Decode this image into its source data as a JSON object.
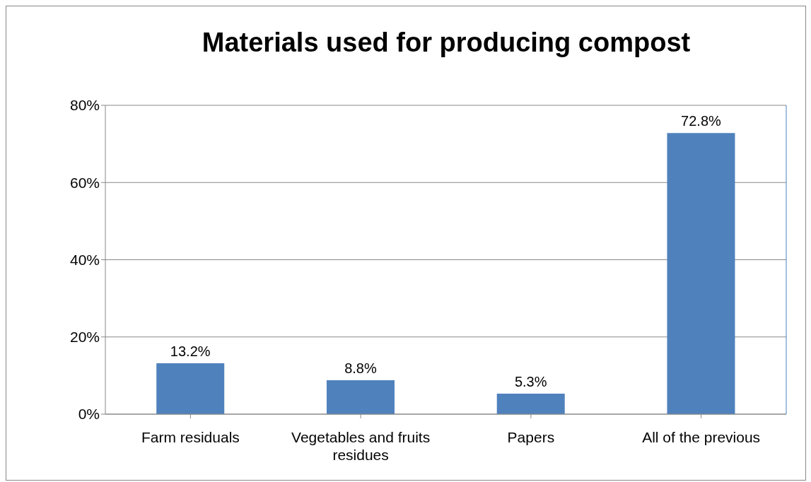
{
  "chart_data": {
    "type": "bar",
    "title": "Materials used for producing compost",
    "categories": [
      "Farm residuals",
      "Vegetables and fruits residues",
      "Papers",
      "All of the previous"
    ],
    "values": [
      13.2,
      8.8,
      5.3,
      72.8
    ],
    "value_labels": [
      "13.2%",
      "8.8%",
      "5.3%",
      "72.8%"
    ],
    "color": "#4f81bd",
    "ylim": [
      0,
      80
    ],
    "yticks": [
      {
        "value": 0,
        "label": "0%"
      },
      {
        "value": 20,
        "label": "20%"
      },
      {
        "value": 40,
        "label": "40%"
      },
      {
        "value": 60,
        "label": "60%"
      },
      {
        "value": 80,
        "label": "80%"
      }
    ],
    "grid": "y"
  }
}
